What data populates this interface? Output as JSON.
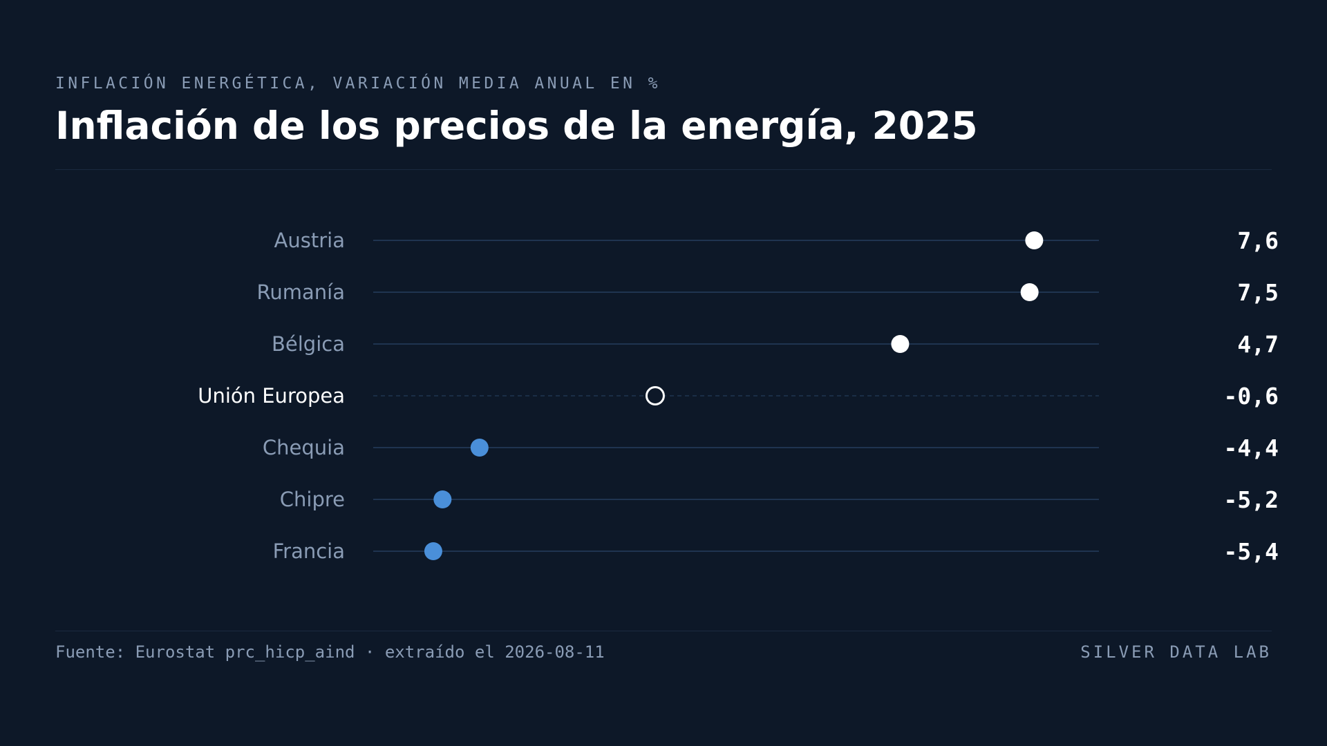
{
  "header": {
    "eyebrow": "INFLACIÓN ENERGÉTICA, VARIACIÓN MEDIA ANUAL EN %",
    "title": "Inflación de los precios de la energía, 2025"
  },
  "footer": {
    "source": "Fuente: Eurostat prc_hicp_aind · extraído el 2026-08-11",
    "brand": "SILVER DATA LAB"
  },
  "colors": {
    "background": "#0d1828",
    "positive_dot": "#ffffff",
    "negative_dot": "#4a8fd9",
    "highlight_ring": "#ffffff",
    "track_line": "#1f3450",
    "category_label": "#8a9cb5",
    "highlight_label": "#ffffff",
    "value_text": "#ffffff"
  },
  "chart_data": {
    "type": "dot",
    "title": "Inflación de los precios de la energía, 2025",
    "subtitle": "INFLACIÓN ENERGÉTICA, VARIACIÓN MEDIA ANUAL EN %",
    "categories": [
      "Austria",
      "Rumanía",
      "Bélgica",
      "Unión Europea",
      "Chequia",
      "Chipre",
      "Francia"
    ],
    "values": [
      7.6,
      7.5,
      4.7,
      -0.6,
      -4.4,
      -5.2,
      -5.4
    ],
    "value_labels": [
      "7,6",
      "7,5",
      "4,7",
      "-0,6",
      "-4,4",
      "-5,2",
      "-5,4"
    ],
    "highlight": "Unión Europea",
    "xlim": [
      -6.7,
      9.0
    ],
    "grid": false,
    "legend": "none"
  }
}
